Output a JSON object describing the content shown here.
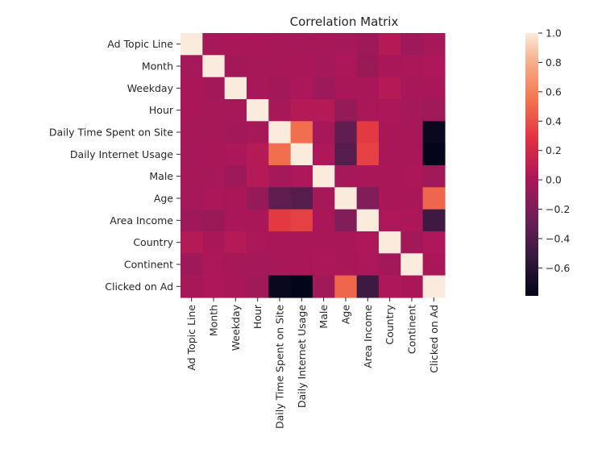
{
  "chart_data": {
    "type": "heatmap",
    "title": "Correlation Matrix",
    "xlabel": "",
    "ylabel": "",
    "row_labels": [
      "Ad Topic Line",
      "Month",
      "Weekday",
      "Hour",
      "Daily Time Spent on Site",
      "Daily Internet Usage",
      "Male",
      "Age",
      "Area Income",
      "Country",
      "Continent",
      "Clicked on Ad"
    ],
    "col_labels": [
      "Ad Topic Line",
      "Month",
      "Weekday",
      "Hour",
      "Daily Time Spent on Site",
      "Daily Internet Usage",
      "Male",
      "Age",
      "Area Income",
      "Country",
      "Continent",
      "Clicked on Ad"
    ],
    "values": [
      [
        1.0,
        -0.02,
        0.0,
        0.0,
        -0.01,
        -0.02,
        -0.01,
        -0.02,
        -0.05,
        0.05,
        -0.05,
        -0.01
      ],
      [
        -0.02,
        1.0,
        -0.03,
        -0.01,
        -0.01,
        0.0,
        -0.02,
        0.01,
        -0.07,
        0.0,
        0.01,
        0.02
      ],
      [
        0.0,
        -0.03,
        1.0,
        -0.01,
        -0.03,
        0.01,
        -0.05,
        0.0,
        0.0,
        0.05,
        -0.01,
        0.0
      ],
      [
        0.0,
        -0.01,
        -0.01,
        1.0,
        -0.01,
        0.05,
        0.05,
        -0.09,
        0.0,
        0.01,
        -0.02,
        -0.04
      ],
      [
        -0.01,
        -0.01,
        -0.03,
        -0.01,
        1.0,
        0.52,
        -0.02,
        -0.33,
        0.31,
        0.0,
        -0.01,
        -0.75
      ],
      [
        -0.02,
        0.0,
        0.01,
        0.05,
        0.52,
        1.0,
        0.02,
        -0.37,
        0.34,
        0.0,
        0.0,
        -0.79
      ],
      [
        -0.01,
        -0.02,
        -0.05,
        0.05,
        -0.02,
        0.02,
        1.0,
        -0.02,
        0.0,
        0.0,
        0.01,
        -0.04
      ],
      [
        -0.02,
        0.01,
        0.0,
        -0.09,
        -0.33,
        -0.37,
        -0.02,
        1.0,
        -0.18,
        0.0,
        0.0,
        0.49
      ],
      [
        -0.05,
        -0.07,
        0.0,
        0.0,
        0.31,
        0.34,
        0.0,
        -0.18,
        1.0,
        0.02,
        0.01,
        -0.48
      ],
      [
        0.05,
        0.0,
        0.05,
        0.01,
        0.0,
        0.0,
        0.0,
        0.0,
        0.02,
        1.0,
        -0.03,
        0.02
      ],
      [
        -0.05,
        0.01,
        -0.01,
        -0.02,
        -0.01,
        0.0,
        0.01,
        0.0,
        0.01,
        -0.03,
        1.0,
        0.0
      ],
      [
        -0.01,
        0.02,
        0.0,
        -0.04,
        -0.75,
        -0.79,
        -0.04,
        0.49,
        -0.48,
        0.02,
        0.0,
        1.0
      ]
    ],
    "colorbar": {
      "colormap": "rocket",
      "range": [
        -0.79,
        1.0
      ],
      "ticks": [
        1.0,
        0.8,
        0.6,
        0.4,
        0.2,
        0.0,
        -0.2,
        -0.4,
        -0.6
      ],
      "tick_labels": [
        "1.0",
        "0.8",
        "0.6",
        "0.4",
        "0.2",
        "0.0",
        "−0.2",
        "−0.4",
        "−0.6"
      ],
      "position": "right"
    },
    "grid": false
  }
}
